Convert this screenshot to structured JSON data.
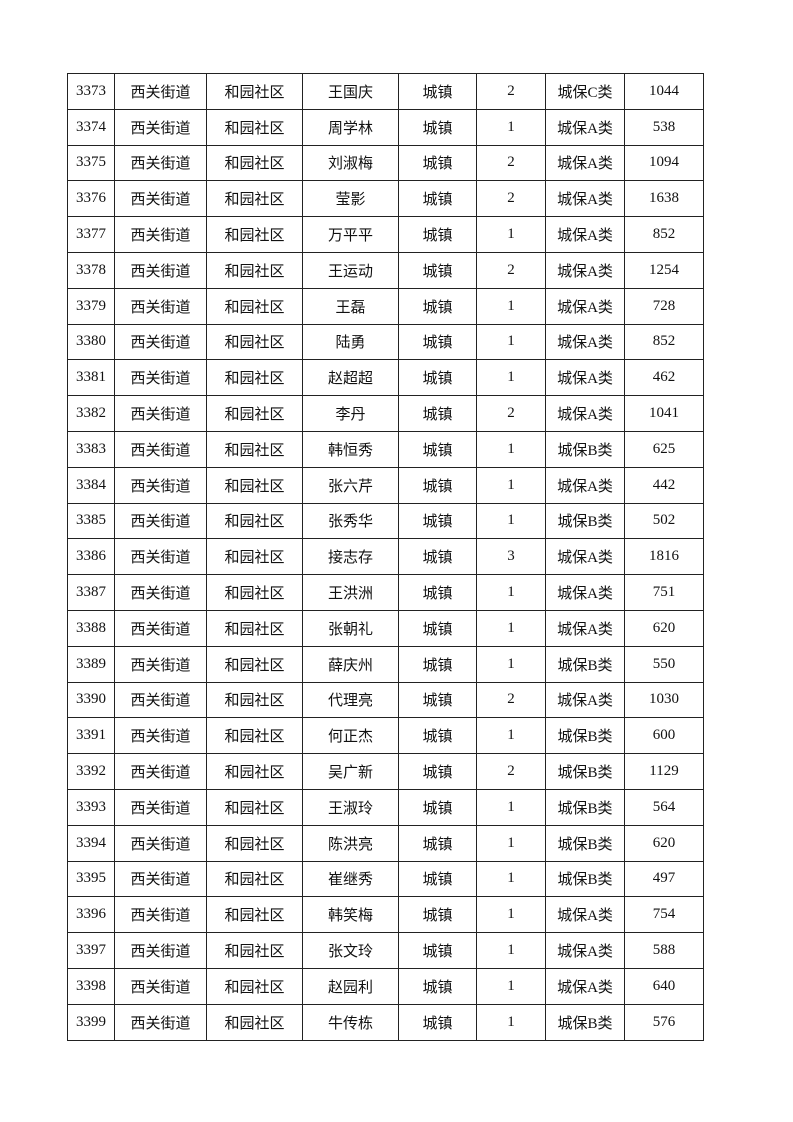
{
  "rows": [
    [
      "3373",
      "西关街道",
      "和园社区",
      "王国庆",
      "城镇",
      "2",
      "城保C类",
      "1044"
    ],
    [
      "3374",
      "西关街道",
      "和园社区",
      "周学林",
      "城镇",
      "1",
      "城保A类",
      "538"
    ],
    [
      "3375",
      "西关街道",
      "和园社区",
      "刘淑梅",
      "城镇",
      "2",
      "城保A类",
      "1094"
    ],
    [
      "3376",
      "西关街道",
      "和园社区",
      "莹影",
      "城镇",
      "2",
      "城保A类",
      "1638"
    ],
    [
      "3377",
      "西关街道",
      "和园社区",
      "万平平",
      "城镇",
      "1",
      "城保A类",
      "852"
    ],
    [
      "3378",
      "西关街道",
      "和园社区",
      "王运动",
      "城镇",
      "2",
      "城保A类",
      "1254"
    ],
    [
      "3379",
      "西关街道",
      "和园社区",
      "王磊",
      "城镇",
      "1",
      "城保A类",
      "728"
    ],
    [
      "3380",
      "西关街道",
      "和园社区",
      "陆勇",
      "城镇",
      "1",
      "城保A类",
      "852"
    ],
    [
      "3381",
      "西关街道",
      "和园社区",
      "赵超超",
      "城镇",
      "1",
      "城保A类",
      "462"
    ],
    [
      "3382",
      "西关街道",
      "和园社区",
      "李丹",
      "城镇",
      "2",
      "城保A类",
      "1041"
    ],
    [
      "3383",
      "西关街道",
      "和园社区",
      "韩恒秀",
      "城镇",
      "1",
      "城保B类",
      "625"
    ],
    [
      "3384",
      "西关街道",
      "和园社区",
      "张六芹",
      "城镇",
      "1",
      "城保A类",
      "442"
    ],
    [
      "3385",
      "西关街道",
      "和园社区",
      "张秀华",
      "城镇",
      "1",
      "城保B类",
      "502"
    ],
    [
      "3386",
      "西关街道",
      "和园社区",
      "接志存",
      "城镇",
      "3",
      "城保A类",
      "1816"
    ],
    [
      "3387",
      "西关街道",
      "和园社区",
      "王洪洲",
      "城镇",
      "1",
      "城保A类",
      "751"
    ],
    [
      "3388",
      "西关街道",
      "和园社区",
      "张朝礼",
      "城镇",
      "1",
      "城保A类",
      "620"
    ],
    [
      "3389",
      "西关街道",
      "和园社区",
      "薛庆州",
      "城镇",
      "1",
      "城保B类",
      "550"
    ],
    [
      "3390",
      "西关街道",
      "和园社区",
      "代理亮",
      "城镇",
      "2",
      "城保A类",
      "1030"
    ],
    [
      "3391",
      "西关街道",
      "和园社区",
      "何正杰",
      "城镇",
      "1",
      "城保B类",
      "600"
    ],
    [
      "3392",
      "西关街道",
      "和园社区",
      "吴广新",
      "城镇",
      "2",
      "城保B类",
      "1129"
    ],
    [
      "3393",
      "西关街道",
      "和园社区",
      "王淑玲",
      "城镇",
      "1",
      "城保B类",
      "564"
    ],
    [
      "3394",
      "西关街道",
      "和园社区",
      "陈洪亮",
      "城镇",
      "1",
      "城保B类",
      "620"
    ],
    [
      "3395",
      "西关街道",
      "和园社区",
      "崔继秀",
      "城镇",
      "1",
      "城保B类",
      "497"
    ],
    [
      "3396",
      "西关街道",
      "和园社区",
      "韩笑梅",
      "城镇",
      "1",
      "城保A类",
      "754"
    ],
    [
      "3397",
      "西关街道",
      "和园社区",
      "张文玲",
      "城镇",
      "1",
      "城保A类",
      "588"
    ],
    [
      "3398",
      "西关街道",
      "和园社区",
      "赵园利",
      "城镇",
      "1",
      "城保A类",
      "640"
    ],
    [
      "3399",
      "西关街道",
      "和园社区",
      "牛传栋",
      "城镇",
      "1",
      "城保B类",
      "576"
    ]
  ]
}
